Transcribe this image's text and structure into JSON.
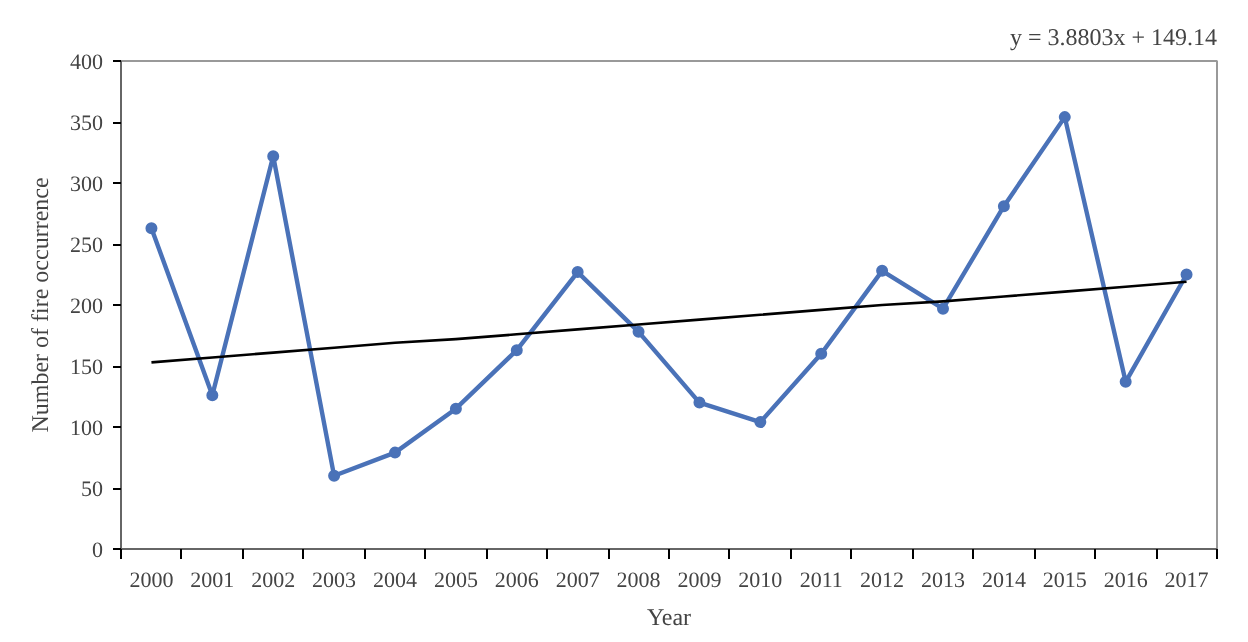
{
  "chart_data": {
    "type": "line",
    "xlabel": "Year",
    "ylabel": "Number of fire occurrence",
    "categories": [
      "2000",
      "2001",
      "2002",
      "2003",
      "2004",
      "2005",
      "2006",
      "2007",
      "2008",
      "2009",
      "2010",
      "2011",
      "2012",
      "2013",
      "2014",
      "2015",
      "2016",
      "2017"
    ],
    "series": [
      {
        "color": "#4a72b8",
        "marker": "circle",
        "values": [
          263,
          126,
          322,
          60,
          79,
          115,
          163,
          227,
          178,
          120,
          104,
          160,
          228,
          197,
          281,
          354,
          137,
          225
        ]
      },
      {
        "type": "line",
        "color": "#000000",
        "marker": "none",
        "values": [
          153,
          157,
          161,
          165,
          169,
          172,
          176,
          180,
          184,
          188,
          192,
          196,
          200,
          203,
          207,
          211,
          215,
          219
        ]
      }
    ],
    "ylim": [
      0,
      400
    ],
    "yticks": [
      0,
      50,
      100,
      150,
      200,
      250,
      300,
      350,
      400
    ],
    "annotations": [
      "y = 3.8803x + 149.14"
    ],
    "grid": false
  }
}
